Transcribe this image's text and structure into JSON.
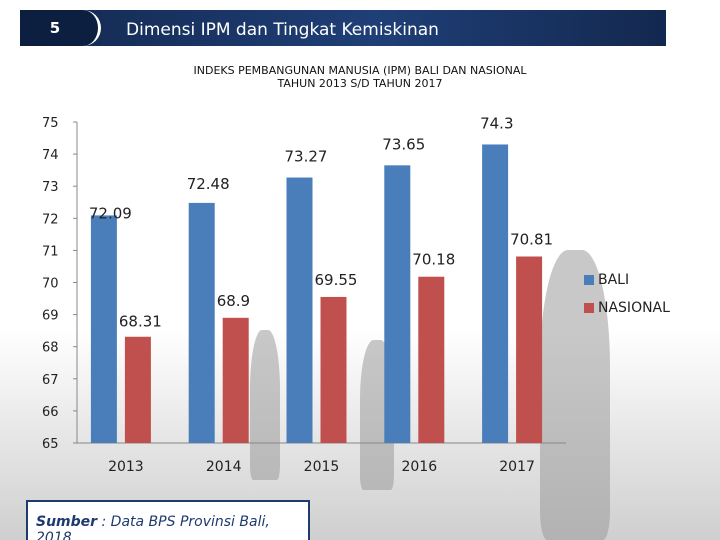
{
  "header": {
    "slide_number": "5",
    "title": "Dimensi IPM dan Tingkat Kemiskinan"
  },
  "source": {
    "label": "Sumber",
    "text": " : Data BPS Provinsi Bali, 2018"
  },
  "chart_data": {
    "type": "bar",
    "title": "INDEKS PEMBANGUNAN MANUSIA (IPM) BALI DAN NASIONAL",
    "subtitle": "TAHUN 2013 S/D TAHUN 2017",
    "categories": [
      "2013",
      "2014",
      "2015",
      "2016",
      "2017"
    ],
    "series": [
      {
        "name": "BALI",
        "color": "#4a7ebb",
        "values": [
          72.09,
          72.48,
          73.27,
          73.65,
          74.3
        ],
        "labels": [
          "72.09",
          "72.48",
          "73.27",
          "73.65",
          "74.3"
        ]
      },
      {
        "name": "NASIONAL",
        "color": "#c0504d",
        "values": [
          68.31,
          68.9,
          69.55,
          70.18,
          70.81
        ],
        "labels": [
          "68.31",
          "68.9",
          "69.55",
          "70.18",
          "70.81"
        ]
      }
    ],
    "ylim": [
      65,
      75
    ],
    "yticks": [
      "65",
      "66",
      "67",
      "68",
      "69",
      "70",
      "71",
      "72",
      "73",
      "74",
      "75"
    ],
    "legend_position": "right",
    "grid": false
  }
}
